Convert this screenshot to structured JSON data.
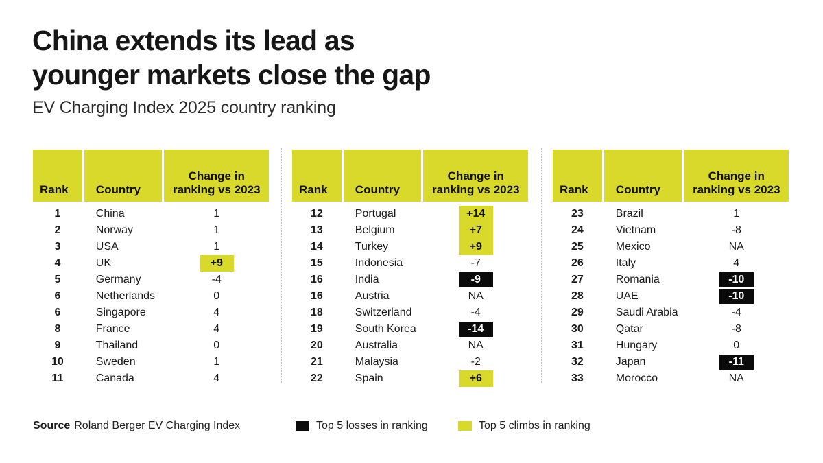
{
  "title": {
    "line1": "China extends its lead as",
    "line2": "younger markets close the gap"
  },
  "subtitle": "EV Charging Index 2025 country ranking",
  "colors": {
    "accent_yellow": "#d8d92b",
    "loss_black": "#0b0b0b",
    "divider_gray": "#bdbdbd"
  },
  "chart_data": {
    "type": "table",
    "title": "China extends its lead as younger markets close the gap",
    "subtitle": "EV Charging Index 2025 country ranking",
    "columns": [
      "Rank",
      "Country",
      "Change in ranking vs 2023"
    ],
    "change_header_lines": [
      "Change in",
      "ranking vs 2023"
    ],
    "highlight_meaning": {
      "loss": "Top 5 losses in ranking",
      "climb": "Top 5 climbs in ranking"
    },
    "tables": [
      {
        "rows": [
          {
            "rank": "1",
            "country": "China",
            "change": "1",
            "highlight": null
          },
          {
            "rank": "2",
            "country": "Norway",
            "change": "1",
            "highlight": null
          },
          {
            "rank": "3",
            "country": "USA",
            "change": "1",
            "highlight": null
          },
          {
            "rank": "4",
            "country": "UK",
            "change": "+9",
            "highlight": "climb"
          },
          {
            "rank": "5",
            "country": "Germany",
            "change": "-4",
            "highlight": null
          },
          {
            "rank": "6",
            "country": "Netherlands",
            "change": "0",
            "highlight": null
          },
          {
            "rank": "6",
            "country": "Singapore",
            "change": "4",
            "highlight": null
          },
          {
            "rank": "8",
            "country": "France",
            "change": "4",
            "highlight": null
          },
          {
            "rank": "9",
            "country": "Thailand",
            "change": "0",
            "highlight": null
          },
          {
            "rank": "10",
            "country": "Sweden",
            "change": "1",
            "highlight": null
          },
          {
            "rank": "11",
            "country": "Canada",
            "change": "4",
            "highlight": null
          }
        ]
      },
      {
        "rows": [
          {
            "rank": "12",
            "country": "Portugal",
            "change": "+14",
            "highlight": "climb"
          },
          {
            "rank": "13",
            "country": "Belgium",
            "change": "+7",
            "highlight": "climb"
          },
          {
            "rank": "14",
            "country": "Turkey",
            "change": "+9",
            "highlight": "climb"
          },
          {
            "rank": "15",
            "country": "Indonesia",
            "change": "-7",
            "highlight": null
          },
          {
            "rank": "16",
            "country": "India",
            "change": "-9",
            "highlight": "loss"
          },
          {
            "rank": "16",
            "country": "Austria",
            "change": "NA",
            "highlight": null
          },
          {
            "rank": "18",
            "country": "Switzerland",
            "change": "-4",
            "highlight": null
          },
          {
            "rank": "19",
            "country": "South Korea",
            "change": "-14",
            "highlight": "loss"
          },
          {
            "rank": "20",
            "country": "Australia",
            "change": "NA",
            "highlight": null
          },
          {
            "rank": "21",
            "country": "Malaysia",
            "change": "-2",
            "highlight": null
          },
          {
            "rank": "22",
            "country": "Spain",
            "change": "+6",
            "highlight": "climb"
          }
        ]
      },
      {
        "rows": [
          {
            "rank": "23",
            "country": "Brazil",
            "change": "1",
            "highlight": null
          },
          {
            "rank": "24",
            "country": "Vietnam",
            "change": "-8",
            "highlight": null
          },
          {
            "rank": "25",
            "country": "Mexico",
            "change": "NA",
            "highlight": null
          },
          {
            "rank": "26",
            "country": "Italy",
            "change": "4",
            "highlight": null
          },
          {
            "rank": "27",
            "country": "Romania",
            "change": "-10",
            "highlight": "loss"
          },
          {
            "rank": "28",
            "country": "UAE",
            "change": "-10",
            "highlight": "loss"
          },
          {
            "rank": "29",
            "country": "Saudi Arabia",
            "change": "-4",
            "highlight": null
          },
          {
            "rank": "30",
            "country": "Qatar",
            "change": "-8",
            "highlight": null
          },
          {
            "rank": "31",
            "country": "Hungary",
            "change": "0",
            "highlight": null
          },
          {
            "rank": "32",
            "country": "Japan",
            "change": "-11",
            "highlight": "loss"
          },
          {
            "rank": "33",
            "country": "Morocco",
            "change": "NA",
            "highlight": null
          }
        ]
      }
    ]
  },
  "footer": {
    "source_label": "Source",
    "source_text": "Roland Berger EV Charging Index",
    "legend": [
      {
        "label": "Top 5 losses in ranking",
        "type": "loss"
      },
      {
        "label": "Top 5 climbs in ranking",
        "type": "climb"
      }
    ]
  }
}
